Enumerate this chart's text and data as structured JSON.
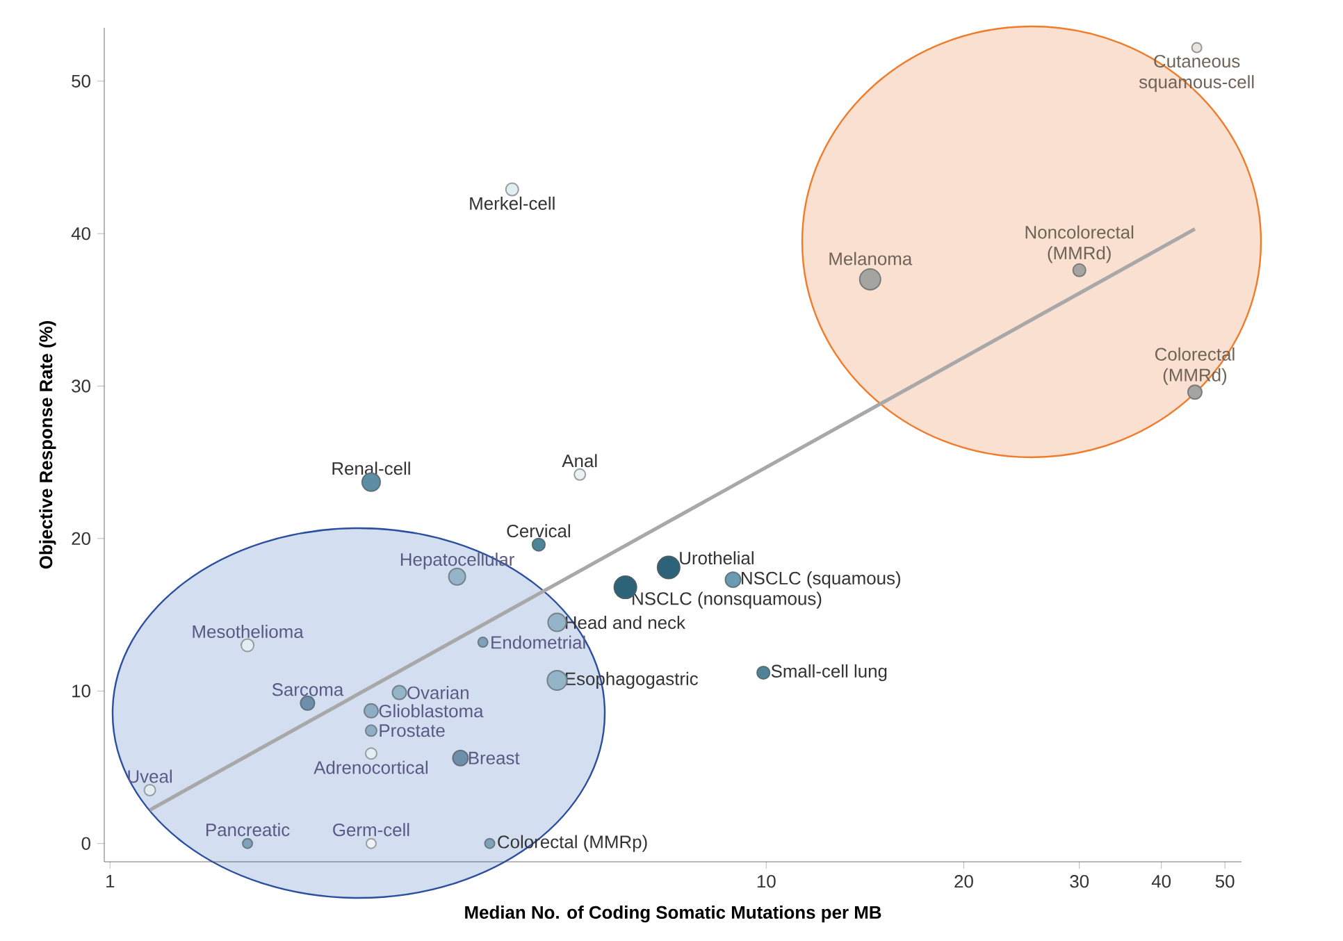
{
  "chart_data": {
    "type": "bubble",
    "xlabel": "Median No. of Coding Somatic Mutations per MB",
    "ylabel": "Objective Response Rate (%)",
    "log": "x",
    "grid": false,
    "xlim": [
      0.98,
      53
    ],
    "ylim": [
      -1.2,
      53.5
    ],
    "xticks": [
      1,
      10,
      20,
      30,
      40,
      50
    ],
    "yticks": [
      0,
      10,
      20,
      30,
      40,
      50
    ],
    "series": [
      {
        "marker": "circle",
        "x": [
          4.1,
          2.5,
          5.2,
          4.5,
          3.38,
          7.1,
          6.1,
          8.9,
          4.8,
          3.7,
          4.8,
          9.9,
          1.62,
          2.0,
          2.76,
          2.5,
          2.5,
          2.5,
          3.42,
          1.15,
          1.62,
          2.5,
          3.79,
          14.4,
          30,
          45,
          45.3
        ],
        "values": [
          42.9,
          23.7,
          24.2,
          19.6,
          17.5,
          18.1,
          16.8,
          17.3,
          14.5,
          13.2,
          10.7,
          11.2,
          13.0,
          9.2,
          9.9,
          8.7,
          7.4,
          5.9,
          5.6,
          3.5,
          0,
          0,
          0,
          37.0,
          37.6,
          29.6,
          52.2
        ],
        "sizes": [
          0.32,
          0.66,
          0.25,
          0.32,
          0.56,
          1,
          1,
          0.47,
          0.66,
          0.19,
          0.77,
          0.32,
          0.32,
          0.39,
          0.39,
          0.39,
          0.25,
          0.25,
          0.47,
          0.25,
          0.19,
          0.19,
          0.19,
          0.88,
          0.32,
          0.39,
          0.19
        ],
        "colors": [
          "#e4eef2",
          "#5e8ea3",
          "#eaf2f4",
          "#4f8399",
          "#94b4c8",
          "#2d6378",
          "#2d6378",
          "#6a9bb0",
          "#94b4c8",
          "#7fa2bb",
          "#94b4c8",
          "#4f8399",
          "#e4ecf4",
          "#6e8fab",
          "#94b4c8",
          "#8eaec6",
          "#8eaec6",
          "#e4ecf4",
          "#6e8fab",
          "#e4ecf4",
          "#7fa2bb",
          "#eef2f6",
          "#7fa2bb",
          "#a4a4a0",
          "#a4a4a0",
          "#a4a4a0",
          "#e8e4e0"
        ]
      },
      {
        "type": "line",
        "x": [
          1.15,
          45
        ],
        "values": [
          2.2,
          40.3
        ],
        "color": "#a8a8a8",
        "marker": "none",
        "line_style": "solid"
      }
    ],
    "annotations": [
      {
        "text": "Merkel-cell",
        "x": 4.1,
        "y": 42.9
      },
      {
        "text": "Renal-cell",
        "x": 2.5,
        "y": 23.7
      },
      {
        "text": "Anal",
        "x": 5.2,
        "y": 24.2
      },
      {
        "text": "Cervical",
        "x": 4.5,
        "y": 19.6
      },
      {
        "text": "Hepatocellular",
        "x": 3.38,
        "y": 17.5
      },
      {
        "text": "Urothelial",
        "x": 7.1,
        "y": 18.1
      },
      {
        "text": "NSCLC (nonsquamous)",
        "x": 6.1,
        "y": 16.8
      },
      {
        "text": "NSCLC (squamous)",
        "x": 8.9,
        "y": 17.3
      },
      {
        "text": "Head and neck",
        "x": 4.8,
        "y": 14.5
      },
      {
        "text": "Endometrial",
        "x": 3.7,
        "y": 13.2
      },
      {
        "text": "Esophagogastric",
        "x": 4.8,
        "y": 10.7
      },
      {
        "text": "Small-cell lung",
        "x": 9.9,
        "y": 11.2
      },
      {
        "text": "Mesothelioma",
        "x": 1.62,
        "y": 13.0
      },
      {
        "text": "Sarcoma",
        "x": 2.0,
        "y": 9.2
      },
      {
        "text": "Ovarian",
        "x": 2.76,
        "y": 9.9
      },
      {
        "text": "Glioblastoma",
        "x": 2.5,
        "y": 8.7
      },
      {
        "text": "Prostate",
        "x": 2.5,
        "y": 7.4
      },
      {
        "text": "Adrenocortical",
        "x": 2.5,
        "y": 5.9
      },
      {
        "text": "Breast",
        "x": 3.42,
        "y": 5.6
      },
      {
        "text": "Uveal",
        "x": 1.15,
        "y": 3.5
      },
      {
        "text": "Pancreatic",
        "x": 1.62,
        "y": 0
      },
      {
        "text": "Germ-cell",
        "x": 2.5,
        "y": 0
      },
      {
        "text": "Colorectal (MMRp)",
        "x": 3.79,
        "y": 0
      },
      {
        "text": "Melanoma",
        "x": 14.4,
        "y": 37.0
      },
      {
        "text": "Noncolorectal (MMRd)",
        "x": 30,
        "y": 37.6
      },
      {
        "text": "Colorectal (MMRd)",
        "x": 45,
        "y": 29.6
      },
      {
        "text": "Cutaneous squamous-cell",
        "x": 45.3,
        "y": 52.2
      }
    ]
  }
}
